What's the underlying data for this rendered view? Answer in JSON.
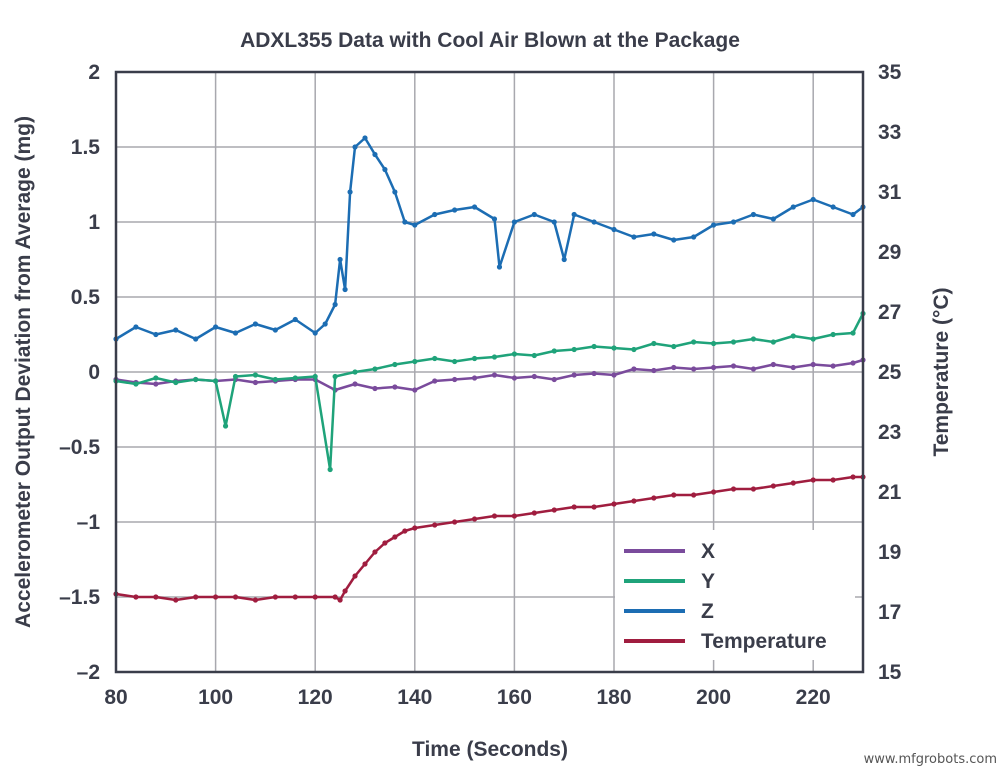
{
  "watermark": "www.mfgrobots.com",
  "chart_data": {
    "type": "line",
    "title": "ADXL355 Data with Cool Air Blown at the Package",
    "xlabel": "Time (Seconds)",
    "ylabel_left": "Accelerometer Output Deviation from Average (mg)",
    "ylabel_right": "Temperature (°C)",
    "xlim": [
      80,
      230
    ],
    "ylim_left": [
      -2,
      2
    ],
    "ylim_right": [
      15,
      35
    ],
    "x_ticks": [
      80,
      100,
      120,
      140,
      160,
      180,
      200,
      220
    ],
    "y_ticks_left": [
      {
        "value": 2,
        "label": "2"
      },
      {
        "value": 1.5,
        "label": "1.5"
      },
      {
        "value": 1,
        "label": "1"
      },
      {
        "value": 0.5,
        "label": "0.5"
      },
      {
        "value": 0,
        "label": "0"
      },
      {
        "value": -0.5,
        "label": "–0.5"
      },
      {
        "value": -1,
        "label": "–1"
      },
      {
        "value": -1.5,
        "label": "–1.5"
      },
      {
        "value": -2,
        "label": "–2"
      }
    ],
    "y_ticks_right": [
      35,
      33,
      31,
      29,
      27,
      25,
      23,
      21,
      19,
      17,
      15
    ],
    "grid": true,
    "legend_position": "bottom-right",
    "series": [
      {
        "name": "X",
        "axis": "left",
        "color": "#7a4b9c",
        "x": [
          80,
          84,
          88,
          92,
          96,
          100,
          104,
          108,
          112,
          116,
          120,
          124,
          128,
          132,
          136,
          140,
          144,
          148,
          152,
          156,
          160,
          164,
          168,
          172,
          176,
          180,
          184,
          188,
          192,
          196,
          200,
          204,
          208,
          212,
          216,
          220,
          224,
          228,
          230
        ],
        "y": [
          -0.05,
          -0.07,
          -0.08,
          -0.06,
          -0.05,
          -0.06,
          -0.05,
          -0.07,
          -0.06,
          -0.05,
          -0.05,
          -0.12,
          -0.08,
          -0.11,
          -0.1,
          -0.12,
          -0.06,
          -0.05,
          -0.04,
          -0.02,
          -0.04,
          -0.03,
          -0.05,
          -0.02,
          -0.01,
          -0.02,
          0.02,
          0.01,
          0.03,
          0.02,
          0.03,
          0.04,
          0.02,
          0.05,
          0.03,
          0.05,
          0.04,
          0.06,
          0.08
        ]
      },
      {
        "name": "Y",
        "axis": "left",
        "color": "#1fa37a",
        "x": [
          80,
          84,
          88,
          92,
          96,
          100,
          102,
          104,
          108,
          112,
          116,
          120,
          123,
          124,
          128,
          132,
          136,
          140,
          144,
          148,
          152,
          156,
          160,
          164,
          168,
          172,
          176,
          180,
          184,
          188,
          192,
          196,
          200,
          204,
          208,
          212,
          216,
          220,
          224,
          228,
          230
        ],
        "y": [
          -0.06,
          -0.08,
          -0.04,
          -0.07,
          -0.05,
          -0.06,
          -0.36,
          -0.03,
          -0.02,
          -0.05,
          -0.04,
          -0.03,
          -0.65,
          -0.03,
          0.0,
          0.02,
          0.05,
          0.07,
          0.09,
          0.07,
          0.09,
          0.1,
          0.12,
          0.11,
          0.14,
          0.15,
          0.17,
          0.16,
          0.15,
          0.19,
          0.17,
          0.2,
          0.19,
          0.2,
          0.22,
          0.2,
          0.24,
          0.22,
          0.25,
          0.26,
          0.39
        ]
      },
      {
        "name": "Z",
        "axis": "left",
        "color": "#1c6db3",
        "x": [
          80,
          84,
          88,
          92,
          96,
          100,
          104,
          108,
          112,
          116,
          120,
          122,
          124,
          125,
          126,
          127,
          128,
          130,
          132,
          134,
          136,
          138,
          140,
          144,
          148,
          152,
          156,
          157,
          160,
          164,
          168,
          170,
          172,
          176,
          180,
          184,
          188,
          192,
          196,
          200,
          204,
          208,
          212,
          216,
          220,
          224,
          228,
          230
        ],
        "y": [
          0.22,
          0.3,
          0.25,
          0.28,
          0.22,
          0.3,
          0.26,
          0.32,
          0.28,
          0.35,
          0.26,
          0.32,
          0.45,
          0.75,
          0.55,
          1.2,
          1.5,
          1.56,
          1.45,
          1.35,
          1.2,
          1.0,
          0.98,
          1.05,
          1.08,
          1.1,
          1.02,
          0.7,
          1.0,
          1.05,
          1.0,
          0.75,
          1.05,
          1.0,
          0.95,
          0.9,
          0.92,
          0.88,
          0.9,
          0.98,
          1.0,
          1.05,
          1.02,
          1.1,
          1.15,
          1.1,
          1.05,
          1.1
        ]
      },
      {
        "name": "Temperature",
        "axis": "right",
        "color": "#a01d3f",
        "x": [
          80,
          84,
          88,
          92,
          96,
          100,
          104,
          108,
          112,
          116,
          120,
          124,
          125,
          126,
          128,
          130,
          132,
          134,
          136,
          138,
          140,
          144,
          148,
          152,
          156,
          160,
          164,
          168,
          172,
          176,
          180,
          184,
          188,
          192,
          196,
          200,
          204,
          208,
          212,
          216,
          220,
          224,
          228,
          230
        ],
        "y": [
          17.6,
          17.5,
          17.5,
          17.4,
          17.5,
          17.5,
          17.5,
          17.4,
          17.5,
          17.5,
          17.5,
          17.5,
          17.4,
          17.7,
          18.2,
          18.6,
          19.0,
          19.3,
          19.5,
          19.7,
          19.8,
          19.9,
          20.0,
          20.1,
          20.2,
          20.2,
          20.3,
          20.4,
          20.5,
          20.5,
          20.6,
          20.7,
          20.8,
          20.9,
          20.9,
          21.0,
          21.1,
          21.1,
          21.2,
          21.3,
          21.4,
          21.4,
          21.5,
          21.5
        ]
      }
    ]
  }
}
